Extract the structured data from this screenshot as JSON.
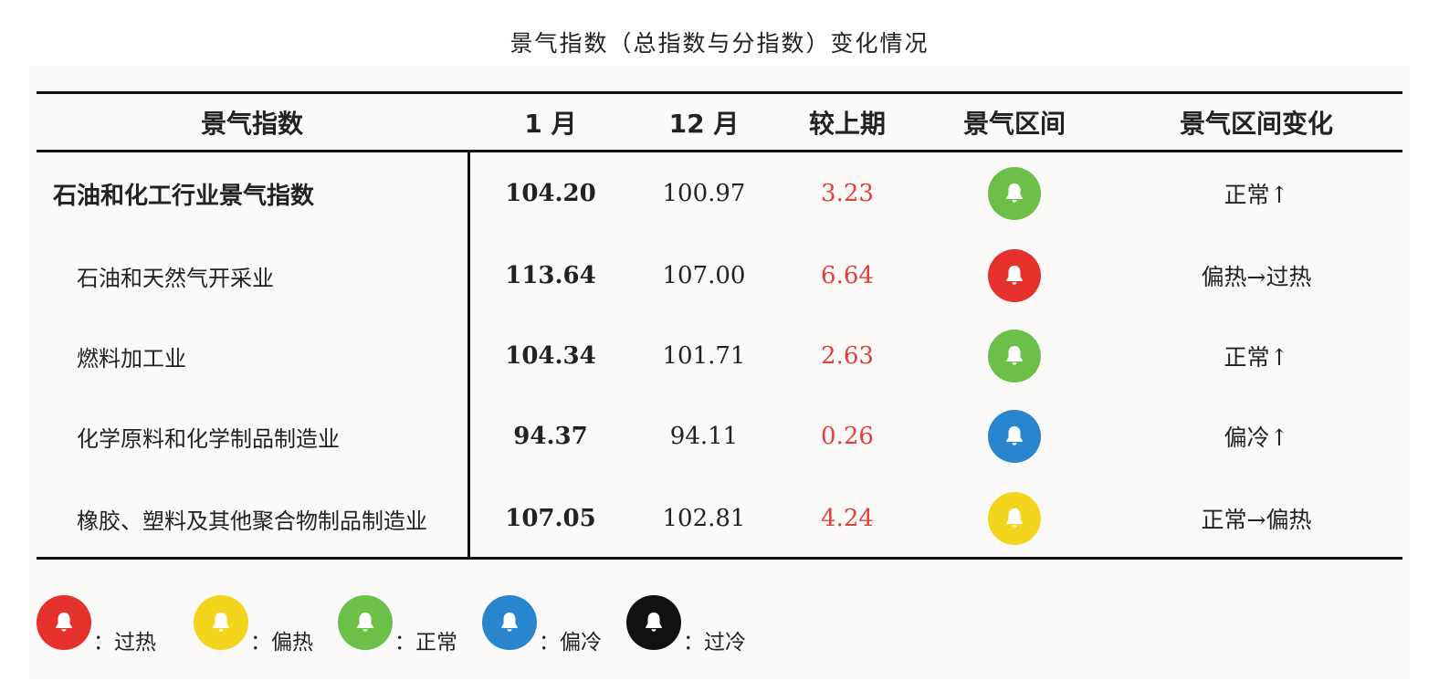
{
  "title": "景气指数（总指数与分指数）变化情况",
  "colors": {
    "过热": "#e5322d",
    "偏热": "#f2d51c",
    "正常": "#6cc04a",
    "偏冷": "#2a85cf",
    "过冷": "#111111"
  },
  "chart_data": {
    "type": "table",
    "title": "景气指数（总指数与分指数）变化情况",
    "columns": [
      "景气指数",
      "1 月",
      "12 月",
      "较上期",
      "景气区间",
      "景气区间变化"
    ],
    "rows": [
      {
        "name": "石油和化工行业景气指数",
        "jan": "104.20",
        "dec": "100.97",
        "change": "3.23",
        "interval": "正常",
        "interval_change": "正常↑"
      },
      {
        "name": "石油和天然气开采业",
        "jan": "113.64",
        "dec": "107.00",
        "change": "6.64",
        "interval": "过热",
        "interval_change": "偏热→过热"
      },
      {
        "name": "燃料加工业",
        "jan": "104.34",
        "dec": "101.71",
        "change": "2.63",
        "interval": "正常",
        "interval_change": "正常↑"
      },
      {
        "name": "化学原料和化学制品制造业",
        "jan": "94.37",
        "dec": "94.11",
        "change": "0.26",
        "interval": "偏冷",
        "interval_change": "偏冷↑"
      },
      {
        "name": "橡胶、塑料及其他聚合物制品制造业",
        "jan": "107.05",
        "dec": "102.81",
        "change": "4.24",
        "interval": "偏热",
        "interval_change": "正常→偏热"
      }
    ],
    "legend": [
      {
        "key": "过热",
        "label": "：过热"
      },
      {
        "key": "偏热",
        "label": "：偏热"
      },
      {
        "key": "正常",
        "label": "：正常"
      },
      {
        "key": "偏冷",
        "label": "：偏冷"
      },
      {
        "key": "过冷",
        "label": "：过冷"
      }
    ]
  }
}
